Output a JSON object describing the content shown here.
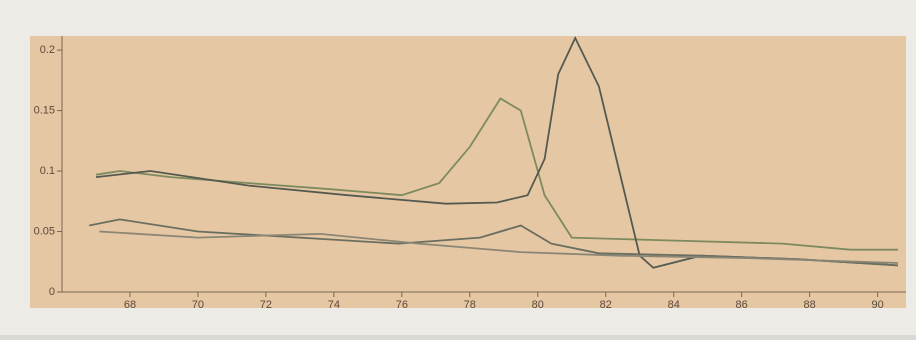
{
  "chart_data": {
    "type": "line",
    "xlim": [
      66,
      90.6
    ],
    "xticks": [
      68,
      70,
      72,
      74,
      76,
      78,
      80,
      82,
      84,
      86,
      88,
      90
    ],
    "ylim": [
      0,
      0.21
    ],
    "yticks": [
      0,
      0.05,
      0.1,
      0.15,
      0.2
    ],
    "series": [
      {
        "color": "#7d8a5e",
        "x": [
          67,
          67.7,
          69.2,
          71.5,
          73.9,
          76,
          77.1,
          78,
          78.9,
          79.5,
          80.2,
          81,
          83.4,
          87.2,
          89.2,
          90.6
        ],
        "values": [
          0.097,
          0.1,
          0.095,
          0.09,
          0.085,
          0.08,
          0.09,
          0.12,
          0.16,
          0.15,
          0.08,
          0.045,
          0.043,
          0.04,
          0.035,
          0.035
        ]
      },
      {
        "color": "#555a50",
        "x": [
          67,
          68.6,
          71.5,
          74.4,
          77.3,
          78.8,
          79.7,
          80.2,
          80.6,
          81.1,
          81.8,
          82.4,
          83,
          83.4,
          84.8,
          87.7,
          90.6
        ],
        "values": [
          0.095,
          0.1,
          0.088,
          0.08,
          0.073,
          0.074,
          0.08,
          0.11,
          0.18,
          0.21,
          0.17,
          0.1,
          0.03,
          0.02,
          0.03,
          0.027,
          0.022
        ]
      },
      {
        "color": "#6a6e60",
        "x": [
          66.8,
          67.7,
          70,
          73,
          75.9,
          78.3,
          79.5,
          80.4,
          81.8,
          84.8,
          87.7,
          90.6
        ],
        "values": [
          0.055,
          0.06,
          0.05,
          0.045,
          0.04,
          0.045,
          0.055,
          0.04,
          0.032,
          0.03,
          0.027,
          0.022
        ]
      },
      {
        "color": "#8a8676",
        "x": [
          67.1,
          70,
          73.6,
          76.5,
          79.5,
          82.4,
          86.2,
          90.6
        ],
        "values": [
          0.05,
          0.045,
          0.048,
          0.04,
          0.033,
          0.03,
          0.028,
          0.024
        ]
      }
    ]
  }
}
